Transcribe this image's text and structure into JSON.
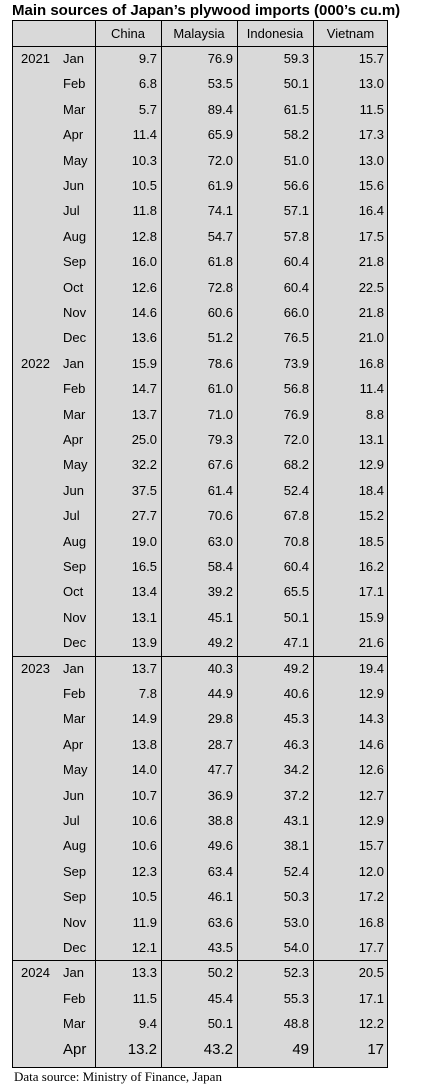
{
  "title": "Main sources of Japan’s plywood imports (000’s cu.m)",
  "table": {
    "header": [
      "China",
      "Malaysia",
      "Indonesia",
      "Vietnam"
    ],
    "groups": [
      {
        "year": "2021",
        "rows": [
          [
            "Jan",
            "9.7",
            "76.9",
            "59.3",
            "15.7"
          ],
          [
            "Feb",
            "6.8",
            "53.5",
            "50.1",
            "13.0"
          ],
          [
            "Mar",
            "5.7",
            "89.4",
            "61.5",
            "11.5"
          ],
          [
            "Apr",
            "11.4",
            "65.9",
            "58.2",
            "17.3"
          ],
          [
            "May",
            "10.3",
            "72.0",
            "51.0",
            "13.0"
          ],
          [
            "Jun",
            "10.5",
            "61.9",
            "56.6",
            "15.6"
          ],
          [
            "Jul",
            "11.8",
            "74.1",
            "57.1",
            "16.4"
          ],
          [
            "Aug",
            "12.8",
            "54.7",
            "57.8",
            "17.5"
          ],
          [
            "Sep",
            "16.0",
            "61.8",
            "60.4",
            "21.8"
          ],
          [
            "Oct",
            "12.6",
            "72.8",
            "60.4",
            "22.5"
          ],
          [
            "Nov",
            "14.6",
            "60.6",
            "66.0",
            "21.8"
          ],
          [
            "Dec",
            "13.6",
            "51.2",
            "76.5",
            "21.0"
          ]
        ]
      },
      {
        "year": "2022",
        "rows": [
          [
            "Jan",
            "15.9",
            "78.6",
            "73.9",
            "16.8"
          ],
          [
            "Feb",
            "14.7",
            "61.0",
            "56.8",
            "11.4"
          ],
          [
            "Mar",
            "13.7",
            "71.0",
            "76.9",
            "8.8"
          ],
          [
            "Apr",
            "25.0",
            "79.3",
            "72.0",
            "13.1"
          ],
          [
            "May",
            "32.2",
            "67.6",
            "68.2",
            "12.9"
          ],
          [
            "Jun",
            "37.5",
            "61.4",
            "52.4",
            "18.4"
          ],
          [
            "Jul",
            "27.7",
            "70.6",
            "67.8",
            "15.2"
          ],
          [
            "Aug",
            "19.0",
            "63.0",
            "70.8",
            "18.5"
          ],
          [
            "Sep",
            "16.5",
            "58.4",
            "60.4",
            "16.2"
          ],
          [
            "Oct",
            "13.4",
            "39.2",
            "65.5",
            "17.1"
          ],
          [
            "Nov",
            "13.1",
            "45.1",
            "50.1",
            "15.9"
          ],
          [
            "Dec",
            "13.9",
            "49.2",
            "47.1",
            "21.6"
          ]
        ]
      },
      {
        "year": "2023",
        "rows": [
          [
            "Jan",
            "13.7",
            "40.3",
            "49.2",
            "19.4"
          ],
          [
            "Feb",
            "7.8",
            "44.9",
            "40.6",
            "12.9"
          ],
          [
            "Mar",
            "14.9",
            "29.8",
            "45.3",
            "14.3"
          ],
          [
            "Apr",
            "13.8",
            "28.7",
            "46.3",
            "14.6"
          ],
          [
            "May",
            "14.0",
            "47.7",
            "34.2",
            "12.6"
          ],
          [
            "Jun",
            "10.7",
            "36.9",
            "37.2",
            "12.7"
          ],
          [
            "Jul",
            "10.6",
            "38.8",
            "43.1",
            "12.9"
          ],
          [
            "Aug",
            "10.6",
            "49.6",
            "38.1",
            "15.7"
          ],
          [
            "Sep",
            "12.3",
            "63.4",
            "52.4",
            "12.0"
          ],
          [
            "Sep",
            "10.5",
            "46.1",
            "50.3",
            "17.2"
          ],
          [
            "Nov",
            "11.9",
            "63.6",
            "53.0",
            "16.8"
          ],
          [
            "Dec",
            "12.1",
            "43.5",
            "54.0",
            "17.7"
          ]
        ]
      },
      {
        "year": "2024",
        "rows": [
          [
            "Jan",
            "13.3",
            "50.2",
            "52.3",
            "20.5"
          ],
          [
            "Feb",
            "11.5",
            "45.4",
            "55.3",
            "17.1"
          ],
          [
            "Mar",
            "9.4",
            "50.1",
            "48.8",
            "12.2"
          ],
          [
            "Apr",
            "13.2",
            "43.2",
            "49",
            "17"
          ]
        ]
      }
    ]
  },
  "source": "Data source: Ministry of Finance, Japan"
}
